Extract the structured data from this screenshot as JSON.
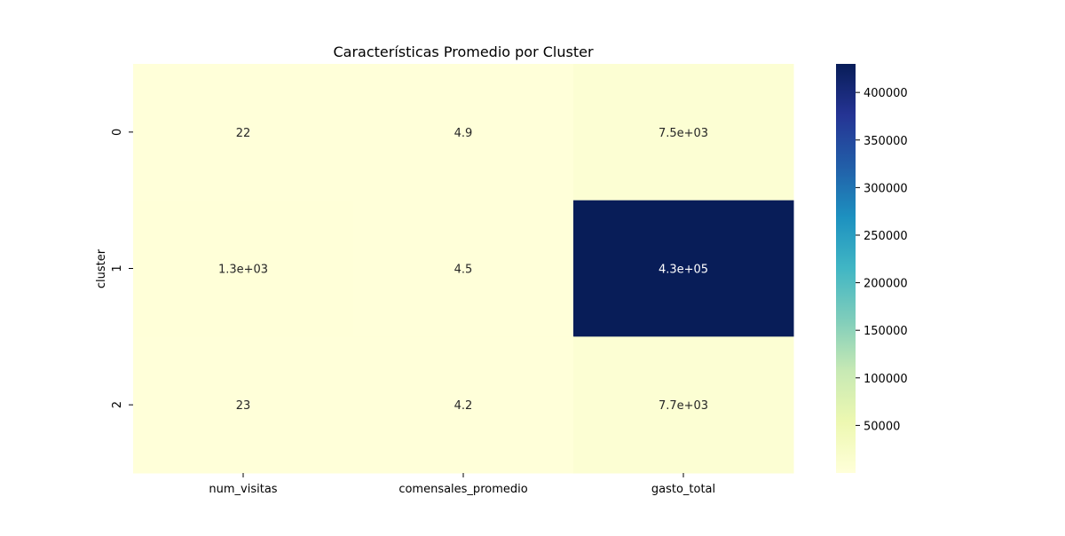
{
  "chart_data": {
    "type": "heatmap",
    "title": "Características Promedio por Cluster",
    "xlabel": "",
    "ylabel": "cluster",
    "x_categories": [
      "num_visitas",
      "comensales_promedio",
      "gasto_total"
    ],
    "y_categories": [
      "0",
      "1",
      "2"
    ],
    "values": [
      [
        22,
        4.9,
        7500
      ],
      [
        1300,
        4.5,
        430000
      ],
      [
        23,
        4.2,
        7700
      ]
    ],
    "annotations": [
      [
        "22",
        "4.9",
        "7.5e+03"
      ],
      [
        "1.3e+03",
        "4.5",
        "4.3e+05"
      ],
      [
        "23",
        "4.2",
        "7.7e+03"
      ]
    ],
    "colormap": "YlGnBu",
    "colorbar": {
      "range": [
        4.2,
        430000
      ],
      "ticks": [
        50000,
        100000,
        150000,
        200000,
        250000,
        300000,
        350000,
        400000
      ],
      "tick_labels": [
        "50000",
        "100000",
        "150000",
        "200000",
        "250000",
        "300000",
        "350000",
        "400000"
      ]
    }
  }
}
